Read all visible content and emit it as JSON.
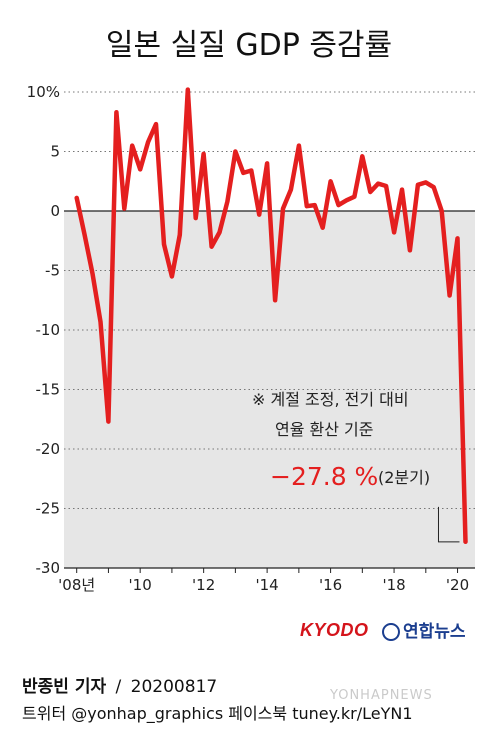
{
  "title": "일본 실질 GDP 증감률",
  "note_line1": "※ 계절 조정, 전기 대비",
  "note_line2": "연율 환산 기준",
  "highlight_value": "−27.8 %",
  "highlight_label": "(2분기)",
  "credits": {
    "kyodo": "KYODO",
    "yonhap": "연합뉴스",
    "reporter": "반종빈 기자",
    "separator": "/",
    "date": "20200817",
    "sns": "트위터 @yonhap_graphics  페이스북 tuney.kr/LeYN1",
    "watermark": "YONHAPNEWS"
  },
  "colors": {
    "line": "#e41f1f",
    "plot_bg": "#e6e6e6",
    "accent_text": "#e41f1f",
    "kyodo": "#d4141b",
    "yonhap": "#1b3e8f"
  },
  "chart_data": {
    "type": "line",
    "title": "일본 실질 GDP 증감률",
    "ylim": [
      -30,
      10
    ],
    "y_ticks": [
      10,
      5,
      0,
      -5,
      -10,
      -15,
      -20,
      -25,
      -30
    ],
    "y_tick_labels": [
      "10%",
      "5",
      "0",
      "-5",
      "-10",
      "-15",
      "-20",
      "-25",
      "-30"
    ],
    "x_tick_labels": [
      {
        "label": "'08년",
        "x": 2008.0
      },
      {
        "label": "'10",
        "x": 2010.0
      },
      {
        "label": "'12",
        "x": 2012.0
      },
      {
        "label": "'14",
        "x": 2014.0
      },
      {
        "label": "'16",
        "x": 2016.0
      },
      {
        "label": "'18",
        "x": 2018.0
      },
      {
        "label": "'20",
        "x": 2020.0
      }
    ],
    "grid": "horizontal dotted",
    "series": [
      {
        "values": [
          {
            "x": 2008.0,
            "y": 1.1
          },
          {
            "x": 2008.25,
            "y": -2.0
          },
          {
            "x": 2008.5,
            "y": -5.3
          },
          {
            "x": 2008.75,
            "y": -9.3
          },
          {
            "x": 2009.0,
            "y": -17.7
          },
          {
            "x": 2009.25,
            "y": 8.3
          },
          {
            "x": 2009.5,
            "y": 0.2
          },
          {
            "x": 2009.75,
            "y": 5.5
          },
          {
            "x": 2010.0,
            "y": 3.5
          },
          {
            "x": 2010.25,
            "y": 5.8
          },
          {
            "x": 2010.5,
            "y": 7.3
          },
          {
            "x": 2010.75,
            "y": -2.8
          },
          {
            "x": 2011.0,
            "y": -5.5
          },
          {
            "x": 2011.25,
            "y": -2.0
          },
          {
            "x": 2011.5,
            "y": 10.2
          },
          {
            "x": 2011.75,
            "y": -0.6
          },
          {
            "x": 2012.0,
            "y": 4.8
          },
          {
            "x": 2012.25,
            "y": -3.0
          },
          {
            "x": 2012.5,
            "y": -1.8
          },
          {
            "x": 2012.75,
            "y": 0.8
          },
          {
            "x": 2013.0,
            "y": 5.0
          },
          {
            "x": 2013.25,
            "y": 3.2
          },
          {
            "x": 2013.5,
            "y": 3.4
          },
          {
            "x": 2013.75,
            "y": -0.3
          },
          {
            "x": 2014.0,
            "y": 4.0
          },
          {
            "x": 2014.25,
            "y": -7.5
          },
          {
            "x": 2014.5,
            "y": 0.2
          },
          {
            "x": 2014.75,
            "y": 1.8
          },
          {
            "x": 2015.0,
            "y": 5.5
          },
          {
            "x": 2015.25,
            "y": 0.4
          },
          {
            "x": 2015.5,
            "y": 0.5
          },
          {
            "x": 2015.75,
            "y": -1.4
          },
          {
            "x": 2016.0,
            "y": 2.5
          },
          {
            "x": 2016.25,
            "y": 0.5
          },
          {
            "x": 2016.5,
            "y": 0.9
          },
          {
            "x": 2016.75,
            "y": 1.2
          },
          {
            "x": 2017.0,
            "y": 4.6
          },
          {
            "x": 2017.25,
            "y": 1.6
          },
          {
            "x": 2017.5,
            "y": 2.3
          },
          {
            "x": 2017.75,
            "y": 2.1
          },
          {
            "x": 2018.0,
            "y": -1.8
          },
          {
            "x": 2018.25,
            "y": 1.8
          },
          {
            "x": 2018.5,
            "y": -3.3
          },
          {
            "x": 2018.75,
            "y": 2.2
          },
          {
            "x": 2019.0,
            "y": 2.4
          },
          {
            "x": 2019.25,
            "y": 2.0
          },
          {
            "x": 2019.5,
            "y": 0.0
          },
          {
            "x": 2019.75,
            "y": -7.1
          },
          {
            "x": 2020.0,
            "y": -2.3
          },
          {
            "x": 2020.25,
            "y": -27.8
          }
        ]
      }
    ],
    "annotation": {
      "text": "−27.8 %",
      "sub": "(2분기)",
      "x": 2020.25,
      "y": -27.8
    }
  }
}
